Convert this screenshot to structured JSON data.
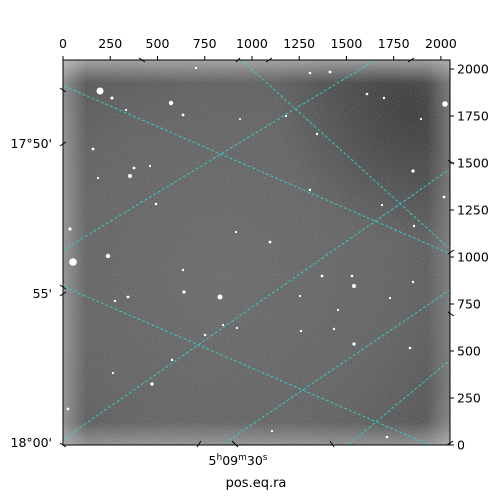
{
  "image": {
    "description_free": true,
    "colors": {
      "sky_dark": "#2a2a2a",
      "sky_mid": "#5c5c5c",
      "border": "#000000",
      "grid": "#2ed4d0",
      "star": "#ffffff"
    }
  },
  "axes": {
    "pixel_x": {
      "range": [
        0,
        2048
      ],
      "ticks": [
        0,
        250,
        500,
        750,
        1000,
        1250,
        1500,
        1750,
        2000
      ],
      "labels": [
        "0",
        "250",
        "500",
        "750",
        "1000",
        "1250",
        "1500",
        "1750",
        "2000"
      ],
      "placement": "top"
    },
    "pixel_y": {
      "range": [
        0,
        2048
      ],
      "ticks": [
        0,
        250,
        500,
        750,
        1000,
        1250,
        1500,
        1750,
        2000
      ],
      "labels": [
        "0",
        "250",
        "500",
        "750",
        "1000",
        "1250",
        "1500",
        "1750",
        "2000"
      ],
      "placement": "right"
    },
    "dec": {
      "labels": [
        "17°50'",
        "55'",
        "18°00'"
      ],
      "placement": "left"
    },
    "ra": {
      "label_html": "5h09m30s",
      "label_parts": {
        "h": "5",
        "m": "09",
        "s": "30"
      },
      "axis_title": "pos.eq.ra",
      "placement": "bottom"
    }
  }
}
